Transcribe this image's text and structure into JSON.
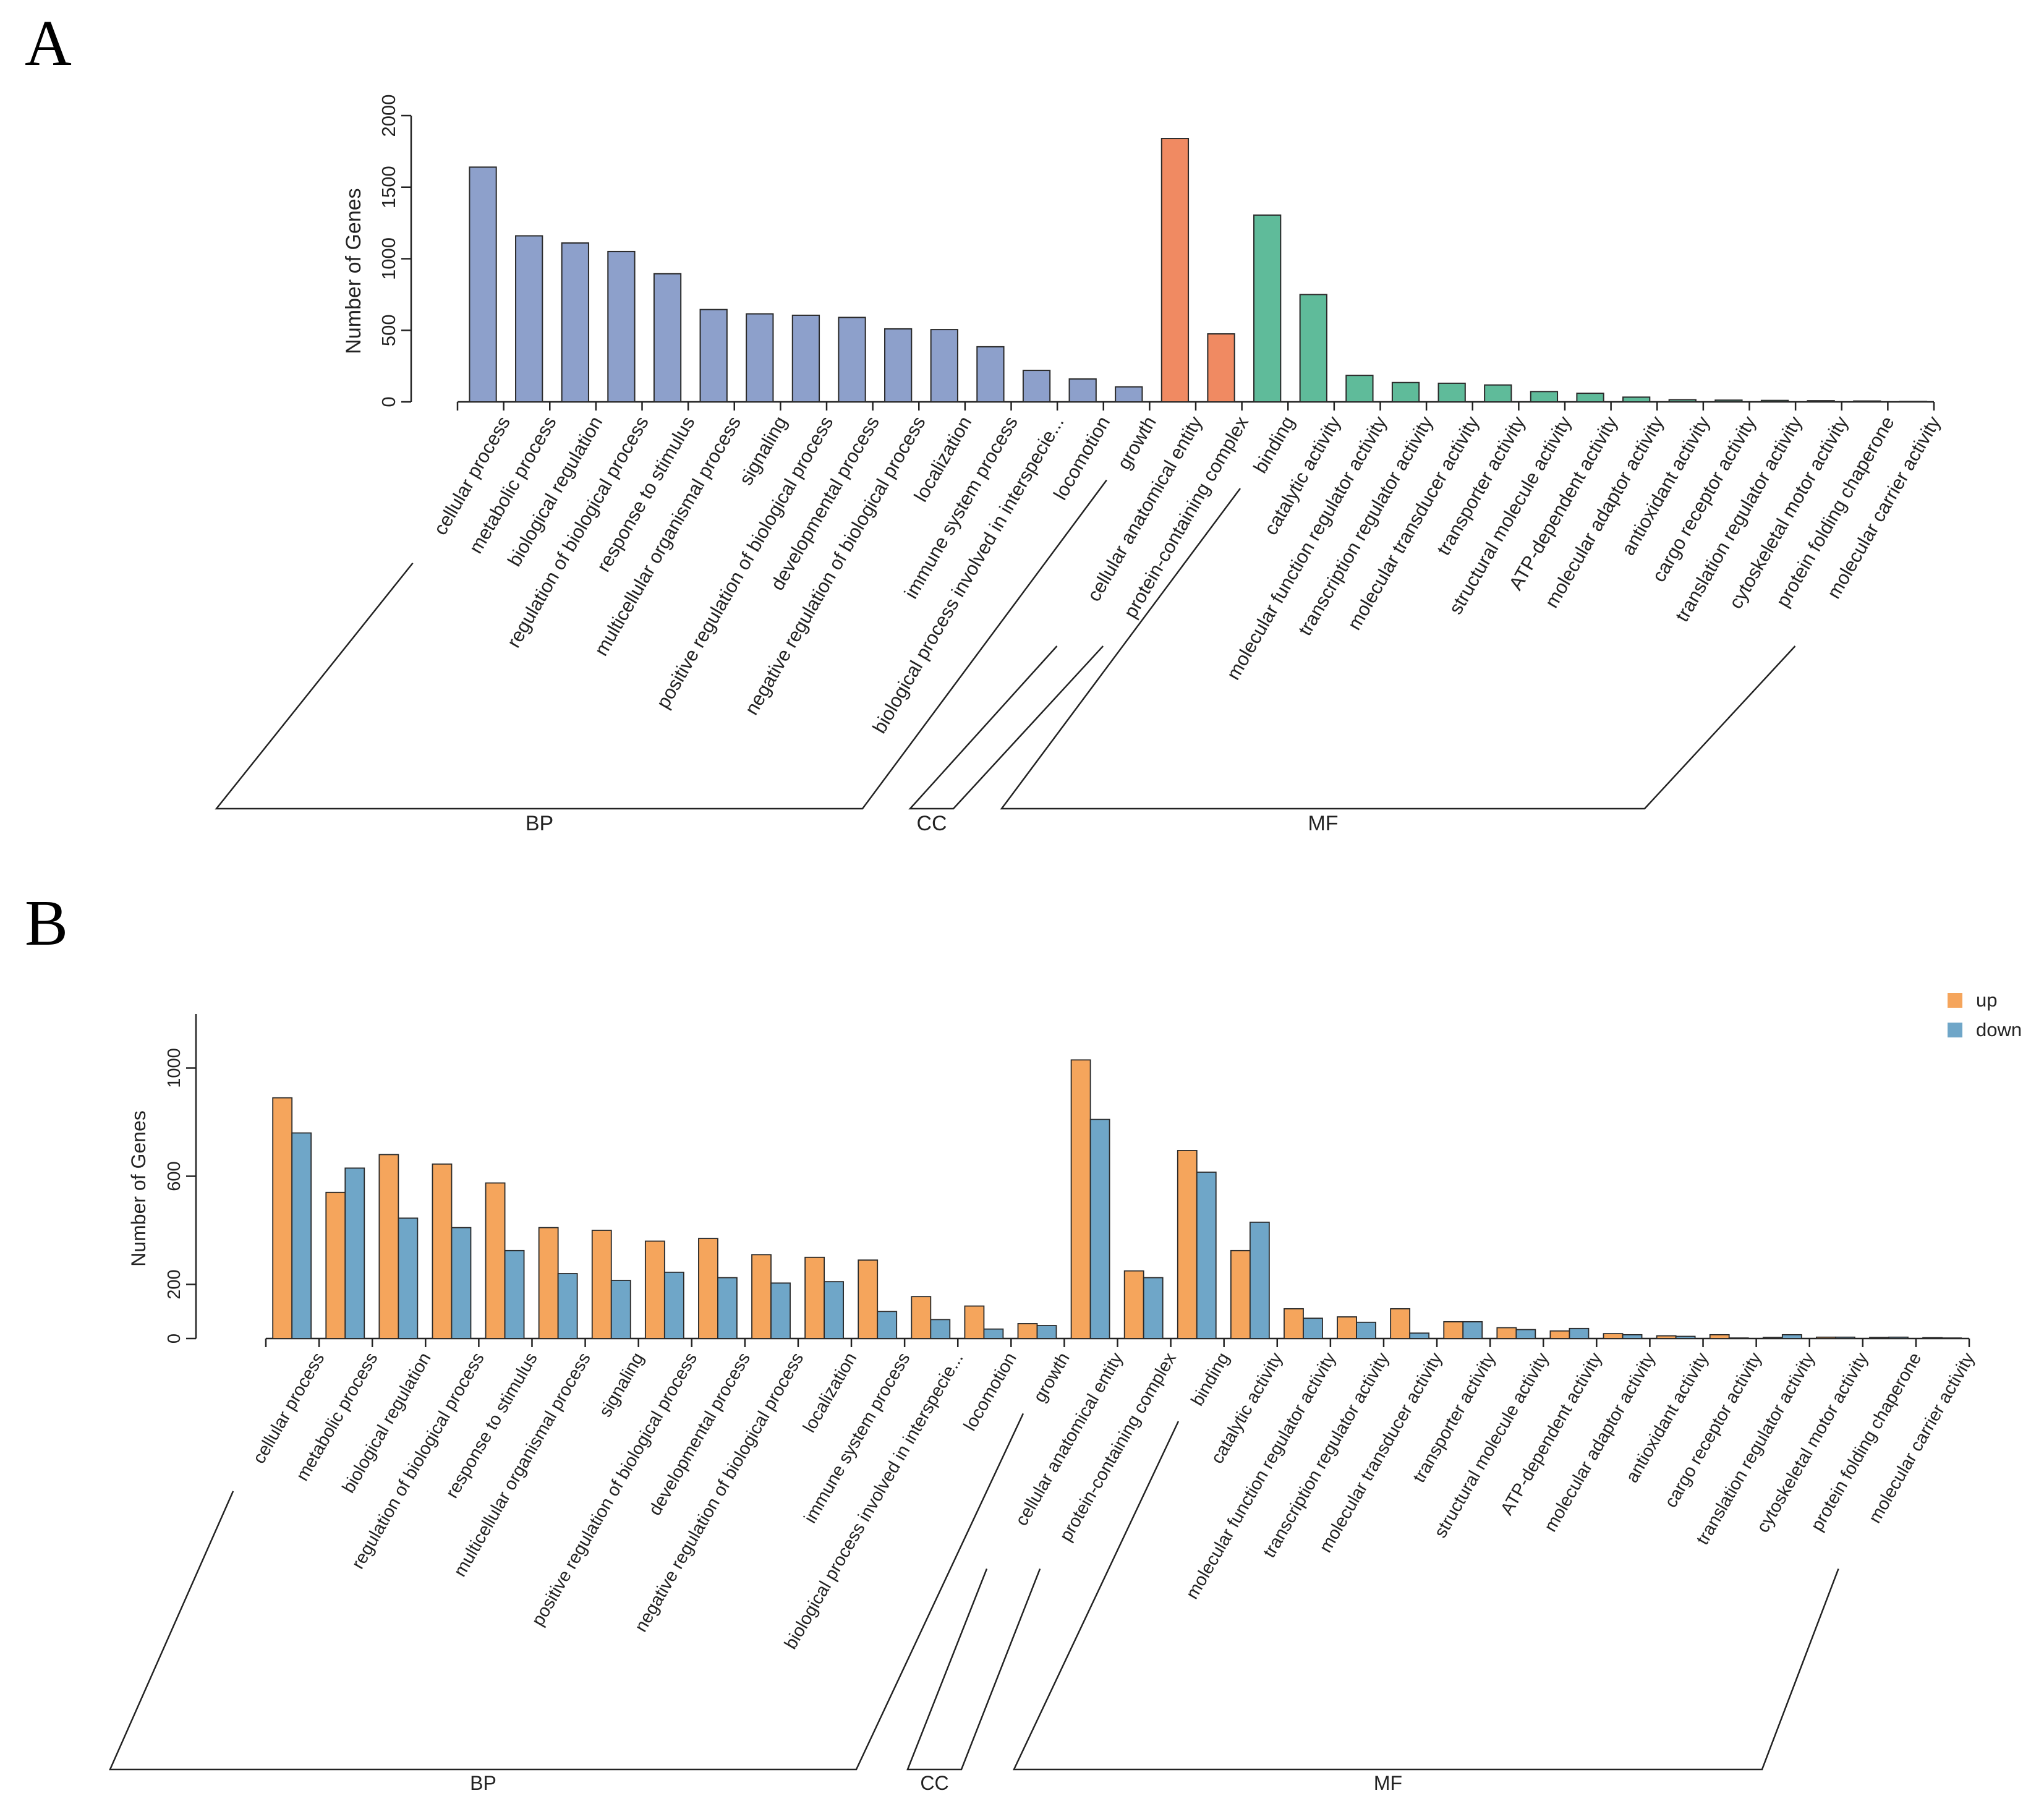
{
  "chart_data": [
    {
      "panel": "A",
      "type": "bar",
      "ylabel": "Number of Genes",
      "yticks": [
        0,
        500,
        1000,
        1500,
        2000
      ],
      "ylim": [
        0,
        2000
      ],
      "categories": [
        "cellular process",
        "metabolic process",
        "biological regulation",
        "regulation of biological process",
        "response to stimulus",
        "multicellular organismal process",
        "signaling",
        "positive regulation of biological process",
        "developmental process",
        "negative regulation of biological process",
        "localization",
        "immune system process",
        "biological process involved in interspecie...",
        "locomotion",
        "growth",
        "cellular anatomical entity",
        "protein-containing complex",
        "binding",
        "catalytic activity",
        "molecular function regulator activity",
        "transcription regulator activity",
        "molecular transducer activity",
        "transporter activity",
        "structural molecule activity",
        "ATP-dependent activity",
        "molecular adaptor activity",
        "antioxidant activity",
        "cargo receptor activity",
        "translation regulator activity",
        "cytoskeletal motor activity",
        "protein folding chaperone",
        "molecular carrier activity"
      ],
      "values": [
        1640,
        1160,
        1110,
        1050,
        895,
        645,
        615,
        605,
        590,
        510,
        505,
        385,
        220,
        160,
        105,
        1840,
        475,
        1305,
        750,
        185,
        135,
        130,
        118,
        72,
        60,
        33,
        15,
        12,
        10,
        8,
        6,
        3
      ],
      "groups": [
        {
          "name": "BP",
          "start": 0,
          "end": 14,
          "color": "#8DA0CB"
        },
        {
          "name": "CC",
          "start": 15,
          "end": 16,
          "color": "#F08A62"
        },
        {
          "name": "MF",
          "start": 17,
          "end": 31,
          "color": "#5FBB9A"
        }
      ]
    },
    {
      "panel": "B",
      "type": "bar",
      "ylabel": "Number of Genes",
      "yticks": [
        0,
        200,
        600,
        1000
      ],
      "ylim": [
        0,
        1200
      ],
      "categories": [
        "cellular process",
        "metabolic process",
        "biological regulation",
        "regulation of biological process",
        "response to stimulus",
        "multicellular organismal process",
        "signaling",
        "positive regulation of biological process",
        "developmental process",
        "negative regulation of biological process",
        "localization",
        "immune system process",
        "biological process involved in interspecie...",
        "locomotion",
        "growth",
        "cellular anatomical entity",
        "protein-containing complex",
        "binding",
        "catalytic activity",
        "molecular function regulator activity",
        "transcription regulator activity",
        "molecular transducer activity",
        "transporter activity",
        "structural molecule activity",
        "ATP-dependent activity",
        "molecular adaptor activity",
        "antioxidant activity",
        "cargo receptor activity",
        "translation regulator activity",
        "cytoskeletal motor activity",
        "protein folding chaperone",
        "molecular carrier activity"
      ],
      "series": [
        {
          "name": "up",
          "color": "#F5A55C",
          "values": [
            890,
            540,
            680,
            645,
            575,
            410,
            400,
            360,
            370,
            310,
            300,
            290,
            155,
            120,
            55,
            1030,
            250,
            695,
            325,
            110,
            80,
            110,
            62,
            40,
            28,
            18,
            10,
            14,
            4,
            5,
            4,
            3
          ]
        },
        {
          "name": "down",
          "color": "#6FA6C8",
          "values": [
            760,
            630,
            445,
            410,
            325,
            240,
            215,
            245,
            225,
            205,
            210,
            100,
            70,
            35,
            48,
            810,
            225,
            615,
            430,
            75,
            60,
            20,
            62,
            33,
            37,
            14,
            8,
            2,
            14,
            5,
            5,
            2
          ]
        }
      ],
      "legend": {
        "position": "top-right",
        "items": [
          "up",
          "down"
        ]
      },
      "groups": [
        {
          "name": "BP",
          "start": 0,
          "end": 14
        },
        {
          "name": "CC",
          "start": 15,
          "end": 16
        },
        {
          "name": "MF",
          "start": 17,
          "end": 31
        }
      ]
    }
  ],
  "panels": {
    "a_label": "A",
    "b_label": "B"
  },
  "colors": {
    "axis": "#222222",
    "bar_stroke": "#2a2a2a"
  }
}
